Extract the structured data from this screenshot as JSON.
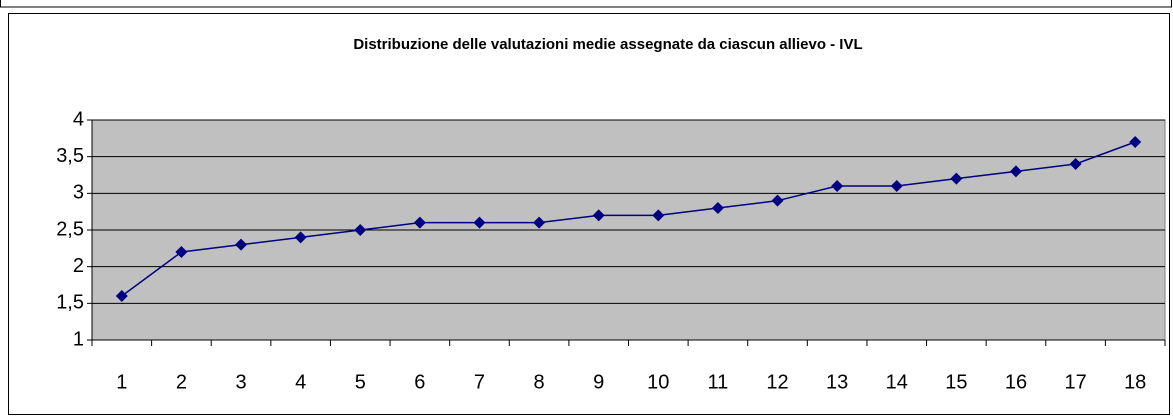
{
  "chart_data": {
    "type": "line",
    "title": "Distribuzione delle valutazioni medie assegnate da ciascun allievo - IVL",
    "categories": [
      "1",
      "2",
      "3",
      "4",
      "5",
      "6",
      "7",
      "8",
      "9",
      "10",
      "11",
      "12",
      "13",
      "14",
      "15",
      "16",
      "17",
      "18"
    ],
    "series": [
      {
        "color": "#000080",
        "values": [
          1.6,
          2.2,
          2.3,
          2.4,
          2.5,
          2.6,
          2.6,
          2.6,
          2.7,
          2.7,
          2.8,
          2.9,
          3.1,
          3.1,
          3.2,
          3.3,
          3.4,
          3.7
        ]
      }
    ],
    "ylim": [
      1,
      4
    ],
    "yticks": [
      1,
      {
        "value": 1.5,
        "label": "1,5"
      },
      2,
      {
        "value": 2.5,
        "label": "2,5"
      },
      3,
      {
        "value": 3.5,
        "label": "3,5"
      },
      4
    ],
    "grid": true,
    "plot_background": "#c0c0c0",
    "marker": "diamond"
  }
}
